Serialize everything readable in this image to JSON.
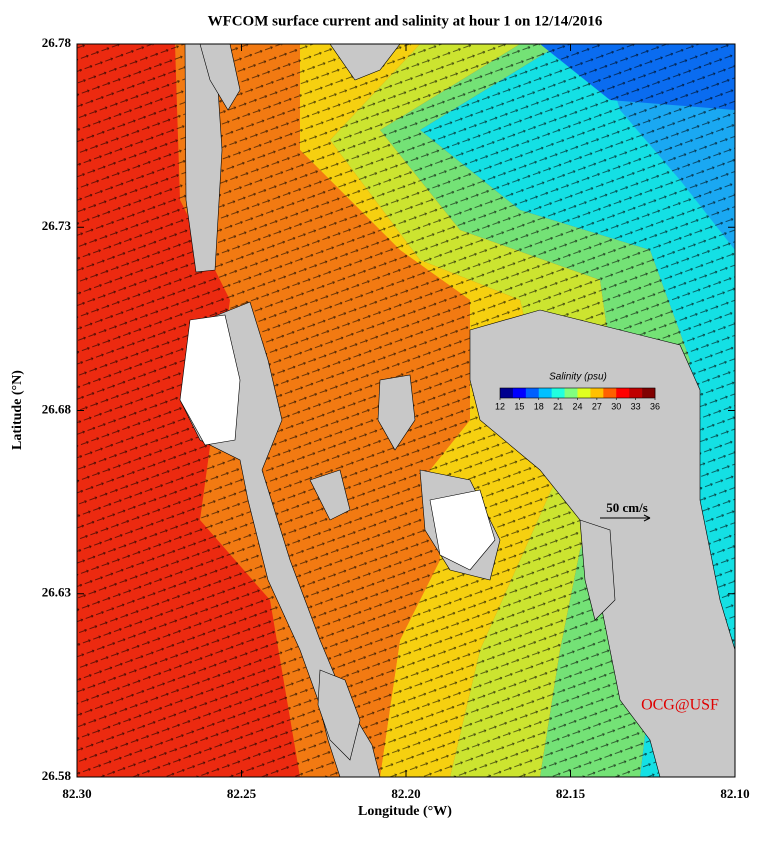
{
  "chart_data": {
    "type": "map",
    "title": "WFCOM surface current and salinity at hour 1 on 12/14/2016",
    "xlabel": "Longitude (°W)",
    "ylabel": "Latitude (°N)",
    "xlim": [
      82.3,
      82.1
    ],
    "ylim": [
      26.58,
      26.78
    ],
    "xticks": [
      {
        "value": 82.3,
        "label": "82.30"
      },
      82.25,
      {
        "value": 82.2,
        "label": "82.20"
      },
      82.15,
      {
        "value": 82.1,
        "label": "82.10"
      }
    ],
    "yticks": [
      26.58,
      26.63,
      26.68,
      26.73,
      26.78
    ],
    "colorbar": {
      "title": "Salinity (psu)",
      "lim": [
        12,
        36
      ],
      "ticks": [
        12,
        15,
        18,
        21,
        24,
        27,
        30,
        33,
        36
      ],
      "colors": [
        "#00008f",
        "#0000ff",
        "#0060ff",
        "#00c0ff",
        "#20ffdf",
        "#80ff80",
        "#dfff20",
        "#ffc000",
        "#ff6000",
        "#ff0000",
        "#c00000",
        "#800000"
      ]
    },
    "scale_label": "50 cm/s",
    "credit": "OCG@USF"
  }
}
